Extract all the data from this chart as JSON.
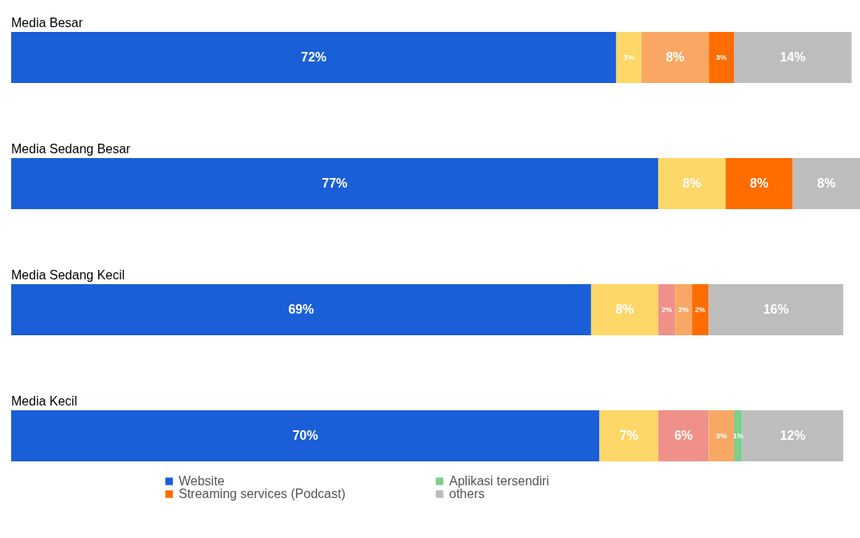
{
  "chart_data": {
    "type": "bar",
    "orientation": "horizontal",
    "stacked": true,
    "tick_labels": false,
    "legend": "bottom",
    "categories": [
      "Media Besar",
      "Media Sedang Besar",
      "Media Sedang Kecil",
      "Media Kecil"
    ],
    "series": [
      {
        "name": "Website",
        "color": "#1a5fd8",
        "values": [
          72,
          77,
          69,
          70
        ],
        "value_labels": [
          "72%",
          "77%",
          "69%",
          "70%"
        ]
      },
      {
        "color": "#fdd767",
        "values": [
          3,
          8,
          8,
          7
        ],
        "value_labels": [
          "3%",
          "8%",
          "8%",
          "7%"
        ]
      },
      {
        "color": "#ef9189",
        "values": [
          null,
          null,
          2,
          6
        ],
        "value_labels": [
          null,
          null,
          "2%",
          "6%"
        ]
      },
      {
        "color": "#f8a864",
        "values": [
          8,
          null,
          2,
          3
        ],
        "value_labels": [
          "8%",
          null,
          "2%",
          "3%"
        ]
      },
      {
        "name": "Streaming services (Podcast)",
        "color": "#ff6d01",
        "values": [
          3,
          8,
          2,
          null
        ],
        "value_labels": [
          "3%",
          "8%",
          "2%",
          null
        ]
      },
      {
        "name": "Aplikasi tersendiri",
        "color": "#7dcf8e",
        "values": [
          null,
          null,
          null,
          1
        ],
        "value_labels": [
          null,
          null,
          null,
          "1%"
        ]
      },
      {
        "name": "others",
        "color": "#bdbdbd",
        "values": [
          14,
          8,
          16,
          12
        ],
        "value_labels": [
          "14%",
          "8%",
          "16%",
          "12%"
        ]
      }
    ]
  }
}
